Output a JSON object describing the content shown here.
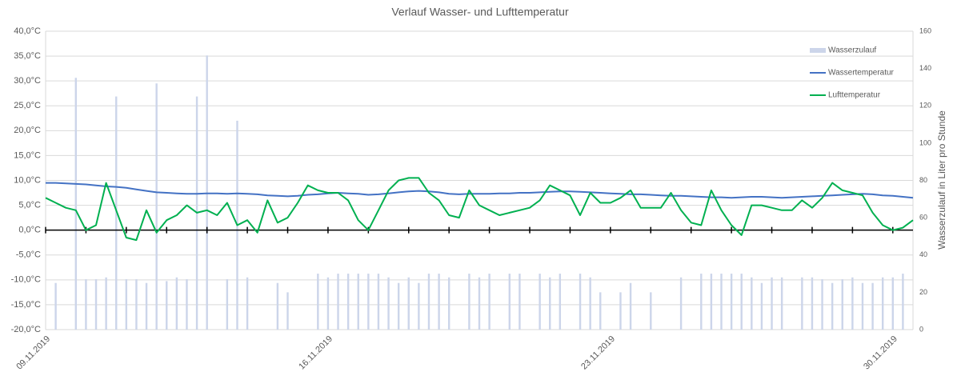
{
  "chart_data": {
    "type": "combo",
    "title": "Verlauf Wasser- und Lufttemperatur",
    "y2label": "Wasserzulauf in Liter pro Stunde",
    "categories": [
      "09.11.2019",
      null,
      null,
      null,
      null,
      null,
      null,
      null,
      null,
      null,
      null,
      null,
      null,
      null,
      null,
      null,
      null,
      null,
      null,
      null,
      null,
      null,
      null,
      null,
      null,
      null,
      null,
      null,
      "16.11.2019",
      null,
      null,
      null,
      null,
      null,
      null,
      null,
      null,
      null,
      null,
      null,
      null,
      null,
      null,
      null,
      null,
      null,
      null,
      null,
      null,
      null,
      null,
      null,
      null,
      null,
      null,
      null,
      "23.11.2019",
      null,
      null,
      null,
      null,
      null,
      null,
      null,
      null,
      null,
      null,
      null,
      null,
      null,
      null,
      null,
      null,
      null,
      null,
      null,
      null,
      null,
      null,
      null,
      null,
      null,
      null,
      null,
      "30.11.2019",
      null,
      null
    ],
    "series": [
      {
        "name": "Wasserzulauf",
        "type": "bar",
        "axis": "y2",
        "color": "#ccd5ea",
        "values": [
          0,
          25,
          0,
          135,
          27,
          27,
          28,
          125,
          27,
          27,
          25,
          132,
          26,
          28,
          27,
          125,
          147,
          0,
          27,
          112,
          28,
          0,
          0,
          25,
          20,
          0,
          0,
          30,
          28,
          30,
          30,
          30,
          30,
          30,
          28,
          25,
          28,
          25,
          30,
          30,
          28,
          0,
          30,
          28,
          30,
          0,
          30,
          30,
          0,
          30,
          28,
          30,
          0,
          30,
          28,
          20,
          0,
          20,
          25,
          0,
          20,
          0,
          0,
          28,
          0,
          30,
          30,
          30,
          30,
          30,
          28,
          25,
          28,
          28,
          0,
          28,
          28,
          27,
          25,
          27,
          28,
          25,
          25,
          28,
          28,
          30,
          0
        ]
      },
      {
        "name": "Wassertemperatur",
        "type": "line",
        "color": "#4472c4",
        "values": [
          9.5,
          9.5,
          9.4,
          9.3,
          9.2,
          9.0,
          8.8,
          8.7,
          8.5,
          8.2,
          7.9,
          7.6,
          7.5,
          7.4,
          7.3,
          7.3,
          7.4,
          7.4,
          7.3,
          7.4,
          7.3,
          7.2,
          7.0,
          6.9,
          6.8,
          6.9,
          7.1,
          7.2,
          7.4,
          7.5,
          7.4,
          7.3,
          7.1,
          7.2,
          7.4,
          7.6,
          7.8,
          7.9,
          7.8,
          7.6,
          7.3,
          7.2,
          7.3,
          7.3,
          7.3,
          7.4,
          7.4,
          7.5,
          7.5,
          7.6,
          7.7,
          7.8,
          7.8,
          7.7,
          7.6,
          7.5,
          7.4,
          7.3,
          7.2,
          7.2,
          7.1,
          7.0,
          6.9,
          6.9,
          6.8,
          6.7,
          6.6,
          6.6,
          6.5,
          6.6,
          6.7,
          6.7,
          6.6,
          6.5,
          6.6,
          6.7,
          6.8,
          6.9,
          7.0,
          7.1,
          7.2,
          7.3,
          7.2,
          7.0,
          6.9,
          6.7,
          6.5
        ]
      },
      {
        "name": "Lufttemperatur",
        "type": "line",
        "color": "#00b050",
        "values": [
          6.5,
          5.5,
          4.5,
          4,
          0,
          1,
          9.5,
          4,
          -1.5,
          -2,
          4,
          -0.5,
          2,
          3,
          5,
          3.5,
          4,
          3,
          5.5,
          1,
          2,
          -0.5,
          6,
          1.5,
          2.5,
          5.5,
          9,
          8,
          7.5,
          7.5,
          6,
          2,
          0,
          4,
          8,
          10,
          10.5,
          10.5,
          7.5,
          6,
          3,
          2.5,
          8,
          5,
          4,
          3,
          3.5,
          4,
          4.5,
          6,
          9,
          8,
          7,
          3,
          7.5,
          5.5,
          5.5,
          6.5,
          8,
          4.5,
          4.5,
          4.5,
          7.5,
          4,
          1.5,
          1,
          8,
          4,
          1,
          -1,
          5,
          5,
          4.5,
          4,
          4,
          6,
          4.5,
          6.5,
          9.5,
          8,
          7.5,
          7,
          3.5,
          1,
          0,
          0.5,
          2
        ]
      }
    ],
    "ylim": [
      -20,
      40
    ],
    "yticks": [
      {
        "value": -20,
        "label": "-20,0°C"
      },
      {
        "value": -15,
        "label": "-15,0°C"
      },
      {
        "value": -10,
        "label": "-10,0°C"
      },
      {
        "value": -5,
        "label": "-5,0°C"
      },
      {
        "value": 0,
        "label": "0,0°C"
      },
      {
        "value": 5,
        "label": "5,0°C"
      },
      {
        "value": 10,
        "label": "10,0°C"
      },
      {
        "value": 15,
        "label": "15,0°C"
      },
      {
        "value": 20,
        "label": "20,0°C"
      },
      {
        "value": 25,
        "label": "25,0°C"
      },
      {
        "value": 30,
        "label": "30,0°C"
      },
      {
        "value": 35,
        "label": "35,0°C"
      },
      {
        "value": 40,
        "label": "40,0°C"
      }
    ],
    "y2lim": [
      0,
      160
    ],
    "y2ticks": [
      0,
      20,
      40,
      60,
      80,
      100,
      120,
      140,
      160
    ],
    "grid": true,
    "legend": "upper right"
  }
}
